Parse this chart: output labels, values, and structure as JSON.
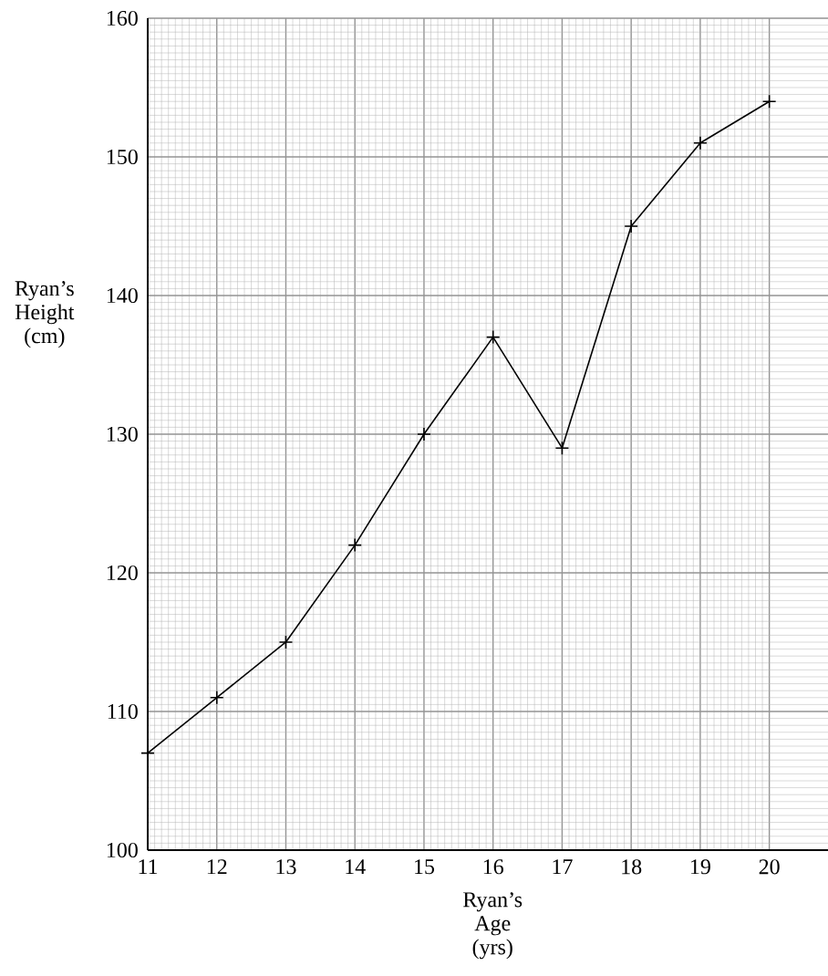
{
  "chart_data": {
    "type": "line",
    "xlabel": "Ryan’s Age (yrs)",
    "ylabel": "Ryan’s Height (cm)",
    "x": [
      11,
      12,
      13,
      14,
      15,
      16,
      17,
      18,
      19,
      20
    ],
    "series": [
      {
        "color": "#000000",
        "values": [
          107,
          111,
          115,
          122,
          130,
          137,
          129,
          145,
          151,
          154
        ]
      }
    ],
    "xlim": [
      11,
      20.85
    ],
    "ylim": [
      100,
      160
    ],
    "xticks": [
      11,
      12,
      13,
      14,
      15,
      16,
      17,
      18,
      19,
      20
    ],
    "yticks": [
      100,
      110,
      120,
      130,
      140,
      150,
      160
    ],
    "grid": true,
    "marker": "cross",
    "line_style": "solid"
  }
}
